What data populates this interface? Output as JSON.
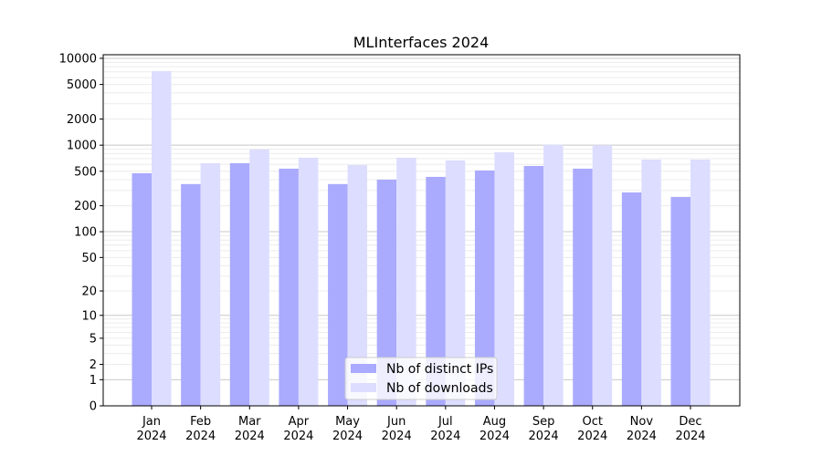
{
  "chart_data": {
    "type": "bar",
    "title": "MLInterfaces 2024",
    "xlabel": "",
    "ylabel": "",
    "yscale": "log(1+x)",
    "ylim": [
      0,
      11000
    ],
    "grid": true,
    "legend_placement": "lower center",
    "categories": [
      "Jan\n2024",
      "Feb\n2024",
      "Mar\n2024",
      "Apr\n2024",
      "May\n2024",
      "Jun\n2024",
      "Jul\n2024",
      "Aug\n2024",
      "Sep\n2024",
      "Oct\n2024",
      "Nov\n2024",
      "Dec\n2024"
    ],
    "yticks": [
      0,
      1,
      2,
      5,
      10,
      20,
      50,
      100,
      200,
      500,
      1000,
      2000,
      5000,
      10000
    ],
    "series": [
      {
        "name": "Nb of distinct IPs",
        "color": "#aaaaff",
        "values": [
          475,
          356,
          620,
          536,
          356,
          401,
          431,
          511,
          576,
          536,
          285,
          253
        ]
      },
      {
        "name": "Nb of downloads",
        "color": "#ddddff",
        "values": [
          7130,
          620,
          891,
          717,
          591,
          717,
          667,
          829,
          1010,
          1000,
          683,
          683
        ]
      }
    ]
  }
}
